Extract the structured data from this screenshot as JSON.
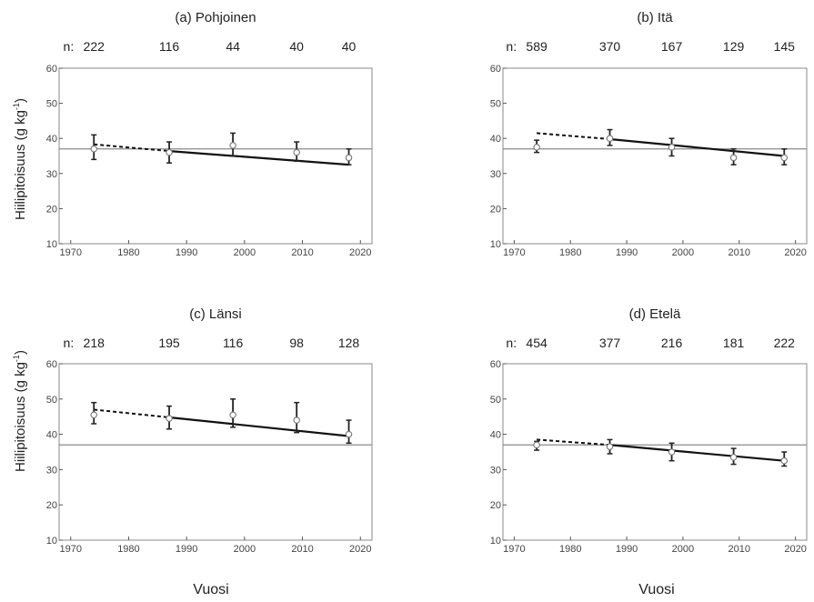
{
  "figure": {
    "ylabel_main": "Hiilipitoisuus (g kg",
    "ylabel_sup": "-1",
    "ylabel_tail": ")",
    "xlabel": "Vuosi"
  },
  "chart_data": [
    {
      "type": "line",
      "title": "(a) Pohjoinen",
      "n_label": "n:",
      "n_values": [
        "222",
        "116",
        "44",
        "40",
        "40"
      ],
      "x": [
        1974,
        1987,
        1998,
        2009,
        2018
      ],
      "y": [
        37.0,
        36.0,
        38.0,
        36.0,
        34.5
      ],
      "err_low": [
        34.0,
        33.0,
        35.0,
        33.5,
        32.5
      ],
      "err_high": [
        41.0,
        39.0,
        41.5,
        39.0,
        37.0
      ],
      "trend_dashed": [
        [
          1974,
          38.3
        ],
        [
          1987,
          36.4
        ]
      ],
      "trend_solid": [
        [
          1987,
          36.4
        ],
        [
          2018,
          32.5
        ]
      ],
      "reference_y": 37,
      "xlim": [
        1968,
        2022
      ],
      "ylim": [
        10,
        60
      ],
      "xticks": [
        1970,
        1980,
        1990,
        2000,
        2010,
        2020
      ],
      "yticks": [
        10,
        20,
        30,
        40,
        50,
        60
      ]
    },
    {
      "type": "line",
      "title": "(b) Itä",
      "n_label": "n:",
      "n_values": [
        "589",
        "370",
        "167",
        "129",
        "145"
      ],
      "x": [
        1974,
        1987,
        1998,
        2009,
        2018
      ],
      "y": [
        37.5,
        40.0,
        37.5,
        34.5,
        34.5
      ],
      "err_low": [
        36.0,
        38.0,
        35.0,
        32.5,
        32.5
      ],
      "err_high": [
        39.5,
        42.5,
        40.0,
        37.0,
        37.0
      ],
      "trend_dashed": [
        [
          1974,
          41.5
        ],
        [
          1987,
          39.8
        ]
      ],
      "trend_solid": [
        [
          1987,
          39.8
        ],
        [
          2018,
          35.0
        ]
      ],
      "reference_y": 37,
      "xlim": [
        1968,
        2022
      ],
      "ylim": [
        10,
        60
      ],
      "xticks": [
        1970,
        1980,
        1990,
        2000,
        2010,
        2020
      ],
      "yticks": [
        10,
        20,
        30,
        40,
        50,
        60
      ]
    },
    {
      "type": "line",
      "title": "(c) Länsi",
      "n_label": "n:",
      "n_values": [
        "218",
        "195",
        "116",
        "98",
        "128"
      ],
      "x": [
        1974,
        1987,
        1998,
        2009,
        2018
      ],
      "y": [
        45.5,
        44.5,
        45.5,
        44.0,
        40.0
      ],
      "err_low": [
        43.0,
        41.5,
        42.0,
        40.5,
        37.5
      ],
      "err_high": [
        49.0,
        48.0,
        50.0,
        49.0,
        44.0
      ],
      "trend_dashed": [
        [
          1974,
          47.0
        ],
        [
          1987,
          44.8
        ]
      ],
      "trend_solid": [
        [
          1987,
          44.8
        ],
        [
          2018,
          39.5
        ]
      ],
      "reference_y": 37,
      "xlim": [
        1968,
        2022
      ],
      "ylim": [
        10,
        60
      ],
      "xticks": [
        1970,
        1980,
        1990,
        2000,
        2010,
        2020
      ],
      "yticks": [
        10,
        20,
        30,
        40,
        50,
        60
      ]
    },
    {
      "type": "line",
      "title": "(d) Etelä",
      "n_label": "n:",
      "n_values": [
        "454",
        "377",
        "216",
        "181",
        "222"
      ],
      "x": [
        1974,
        1987,
        1998,
        2009,
        2018
      ],
      "y": [
        37.0,
        36.5,
        35.0,
        33.5,
        32.5
      ],
      "err_low": [
        35.5,
        34.5,
        32.5,
        31.5,
        31.0
      ],
      "err_high": [
        38.0,
        38.5,
        37.5,
        36.0,
        35.0
      ],
      "trend_dashed": [
        [
          1974,
          38.5
        ],
        [
          1987,
          37.0
        ]
      ],
      "trend_solid": [
        [
          1987,
          37.0
        ],
        [
          2018,
          32.5
        ]
      ],
      "reference_y": 37,
      "xlim": [
        1968,
        2022
      ],
      "ylim": [
        10,
        60
      ],
      "xticks": [
        1970,
        1980,
        1990,
        2000,
        2010,
        2020
      ],
      "yticks": [
        10,
        20,
        30,
        40,
        50,
        60
      ]
    }
  ]
}
